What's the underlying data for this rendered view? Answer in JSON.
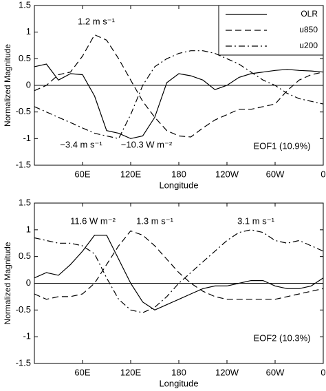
{
  "chart_data": [
    {
      "type": "line",
      "xlabel": "Longitude",
      "ylabel": "Normalized Magnitude",
      "x": [
        0,
        15,
        30,
        45,
        60,
        75,
        90,
        105,
        120,
        135,
        150,
        165,
        180,
        195,
        210,
        225,
        240,
        255,
        270,
        285,
        300,
        315,
        330,
        345,
        360
      ],
      "xlim": [
        0,
        360
      ],
      "xticks": [
        {
          "value": 60,
          "label": "60E"
        },
        {
          "value": 120,
          "label": "120E"
        },
        180,
        {
          "value": 240,
          "label": "120W"
        },
        {
          "value": 300,
          "label": "60W"
        },
        {
          "value": 360,
          "label": "0"
        }
      ],
      "ylim": [
        -1.5,
        1.5
      ],
      "yticks": [
        -1.5,
        -1,
        -0.5,
        0,
        0.5,
        1,
        1.5
      ],
      "legend": "upper right",
      "series": [
        {
          "name": "OLR",
          "color": "#000000",
          "dash": "solid",
          "values": [
            0.35,
            0.4,
            0.1,
            0.22,
            0.2,
            -0.2,
            -0.85,
            -0.9,
            -1.0,
            -0.95,
            -0.6,
            0.05,
            0.22,
            0.18,
            0.1,
            -0.08,
            0.0,
            0.15,
            0.22,
            0.25,
            0.28,
            0.3,
            0.28,
            0.27,
            0.25
          ]
        },
        {
          "name": "u850",
          "color": "#000000",
          "dash": "dashed",
          "values": [
            -0.1,
            0.0,
            0.2,
            0.25,
            0.55,
            0.95,
            0.85,
            0.5,
            0.1,
            -0.3,
            -0.6,
            -0.85,
            -0.95,
            -0.97,
            -0.8,
            -0.65,
            -0.55,
            -0.45,
            -0.45,
            -0.4,
            -0.35,
            -0.1,
            0.1,
            0.2,
            0.25
          ]
        },
        {
          "name": "u200",
          "color": "#000000",
          "dash": "dashdot",
          "values": [
            -0.4,
            -0.5,
            -0.6,
            -0.7,
            -0.8,
            -0.9,
            -0.95,
            -1.0,
            -0.55,
            0.0,
            0.35,
            0.5,
            0.6,
            0.65,
            0.65,
            0.6,
            0.5,
            0.4,
            0.25,
            0.1,
            0.0,
            -0.15,
            -0.25,
            -0.3,
            -0.35
          ]
        }
      ],
      "annotations": [
        "1.2 m s⁻¹",
        "−3.4 m s⁻¹",
        "−10.3 W m⁻²",
        "EOF1 (10.9%)"
      ]
    },
    {
      "type": "line",
      "xlabel": "Longitude",
      "ylabel": "Normalized Magnitude",
      "x": [
        0,
        15,
        30,
        45,
        60,
        75,
        90,
        105,
        120,
        135,
        150,
        165,
        180,
        195,
        210,
        225,
        240,
        255,
        270,
        285,
        300,
        315,
        330,
        345,
        360
      ],
      "xlim": [
        0,
        360
      ],
      "xticks": [
        {
          "value": 60,
          "label": "60E"
        },
        {
          "value": 120,
          "label": "120E"
        },
        180,
        {
          "value": 240,
          "label": "120W"
        },
        {
          "value": 300,
          "label": "60W"
        },
        {
          "value": 360,
          "label": "0"
        }
      ],
      "ylim": [
        -1.5,
        1.5
      ],
      "yticks": [
        -1.5,
        -1,
        -0.5,
        0,
        0.5,
        1,
        1.5
      ],
      "series": [
        {
          "color": "#000000",
          "dash": "solid",
          "values": [
            0.1,
            0.2,
            0.15,
            0.35,
            0.6,
            0.9,
            0.9,
            0.45,
            0.0,
            -0.35,
            -0.5,
            -0.4,
            -0.3,
            -0.2,
            -0.1,
            -0.05,
            -0.05,
            0.0,
            0.05,
            0.05,
            -0.05,
            -0.1,
            -0.1,
            -0.05,
            0.1
          ]
        },
        {
          "color": "#000000",
          "dash": "dashed",
          "values": [
            -0.2,
            -0.3,
            -0.25,
            -0.25,
            -0.2,
            0.0,
            0.35,
            0.7,
            0.98,
            0.9,
            0.7,
            0.45,
            0.2,
            0.0,
            -0.15,
            -0.25,
            -0.3,
            -0.3,
            -0.3,
            -0.3,
            -0.3,
            -0.25,
            -0.2,
            -0.15,
            -0.1
          ]
        },
        {
          "color": "#000000",
          "dash": "dashdot",
          "values": [
            0.85,
            0.8,
            0.75,
            0.75,
            0.7,
            0.55,
            0.1,
            -0.3,
            -0.5,
            -0.55,
            -0.45,
            -0.25,
            0.0,
            0.2,
            0.4,
            0.6,
            0.8,
            0.95,
            1.0,
            0.95,
            0.8,
            0.75,
            0.8,
            0.7,
            0.6
          ]
        }
      ],
      "annotations": [
        "11.6 W m⁻²",
        "1.3 m s⁻¹",
        "3.1 m s⁻¹",
        "EOF2 (10.3%)"
      ]
    }
  ]
}
